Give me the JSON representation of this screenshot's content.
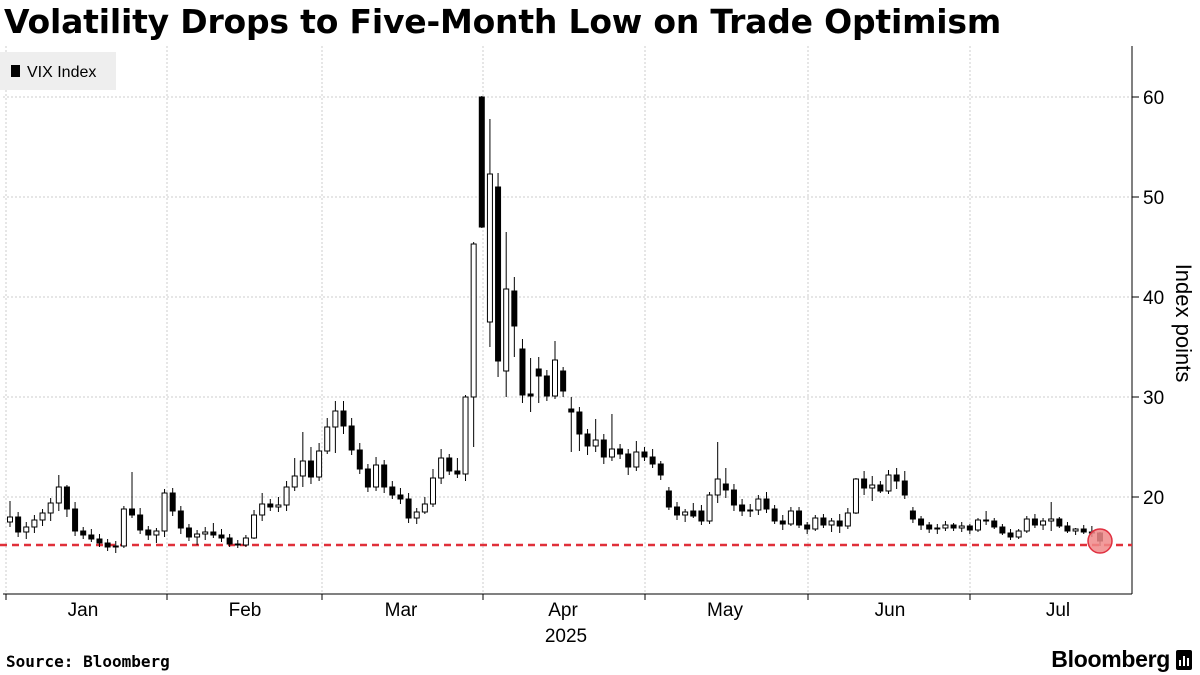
{
  "title": "Volatility Drops to Five-Month Low on Trade Optimism",
  "source": "Source: Bloomberg",
  "brand": "Bloomberg",
  "colors": {
    "candle": "#000000",
    "hollow_fill": "#ffffff",
    "reference_line": "#e0303a",
    "marker_fill": "#f08a8a",
    "marker_stroke": "#e03040",
    "grid": "#cccccc",
    "legend_bg": "#eeeeee"
  },
  "chart_data": {
    "type": "candlestick",
    "series_name": "VIX Index",
    "xlabel": "2025",
    "ylabel": "Index points",
    "y_ticks": [
      20,
      30,
      40,
      50,
      60
    ],
    "ylim": [
      10,
      65
    ],
    "y_axis_side": "right",
    "grid": true,
    "legend_position": "top-left",
    "x_months": [
      "Jan",
      "Feb",
      "Mar",
      "Apr",
      "May",
      "Jun",
      "Jul"
    ],
    "reference_line": {
      "value": 15.2,
      "style": "dashed"
    },
    "highlight": "last point",
    "ohlc": [
      [
        17.5,
        19.6,
        17.0,
        18.0
      ],
      [
        18.0,
        18.5,
        16.0,
        16.5
      ],
      [
        16.5,
        17.5,
        15.8,
        17.0
      ],
      [
        17.0,
        18.2,
        16.4,
        17.7
      ],
      [
        17.7,
        18.8,
        17.1,
        18.4
      ],
      [
        18.4,
        19.9,
        17.6,
        19.4
      ],
      [
        19.4,
        22.2,
        18.6,
        21.0
      ],
      [
        21.0,
        21.2,
        18.0,
        18.8
      ],
      [
        18.8,
        19.5,
        16.1,
        16.6
      ],
      [
        16.6,
        17.0,
        15.8,
        16.2
      ],
      [
        16.2,
        16.8,
        15.5,
        15.8
      ],
      [
        15.8,
        16.3,
        15.0,
        15.4
      ],
      [
        15.4,
        15.8,
        14.6,
        15.0
      ],
      [
        15.0,
        15.6,
        14.4,
        15.1
      ],
      [
        15.1,
        19.1,
        14.9,
        18.8
      ],
      [
        18.8,
        22.5,
        17.9,
        18.2
      ],
      [
        18.2,
        18.9,
        16.3,
        16.7
      ],
      [
        16.7,
        17.1,
        15.7,
        16.2
      ],
      [
        16.2,
        16.9,
        15.4,
        16.6
      ],
      [
        16.6,
        20.8,
        16.0,
        20.4
      ],
      [
        20.4,
        20.9,
        18.1,
        18.6
      ],
      [
        18.6,
        19.1,
        16.3,
        16.9
      ],
      [
        16.9,
        17.3,
        15.6,
        16.0
      ],
      [
        16.0,
        16.7,
        15.2,
        16.3
      ],
      [
        16.3,
        17.0,
        15.7,
        16.5
      ],
      [
        16.5,
        17.4,
        15.9,
        16.2
      ],
      [
        16.2,
        16.8,
        15.5,
        15.9
      ],
      [
        15.9,
        16.3,
        15.0,
        15.3
      ],
      [
        15.3,
        15.7,
        14.9,
        15.2
      ],
      [
        15.2,
        16.2,
        15.0,
        15.9
      ],
      [
        15.9,
        18.7,
        15.8,
        18.2
      ],
      [
        18.2,
        20.4,
        17.6,
        19.3
      ],
      [
        19.3,
        19.8,
        18.6,
        19.0
      ],
      [
        19.0,
        20.0,
        18.5,
        19.2
      ],
      [
        19.2,
        21.6,
        18.6,
        21.0
      ],
      [
        21.0,
        23.9,
        20.6,
        22.1
      ],
      [
        22.1,
        26.5,
        21.0,
        23.6
      ],
      [
        23.6,
        25.0,
        21.3,
        22.0
      ],
      [
        22.0,
        25.4,
        21.6,
        24.6
      ],
      [
        24.6,
        27.9,
        24.3,
        27.0
      ],
      [
        27.0,
        29.6,
        24.4,
        28.6
      ],
      [
        28.6,
        29.6,
        26.3,
        27.1
      ],
      [
        27.1,
        27.9,
        24.2,
        24.7
      ],
      [
        24.7,
        25.4,
        22.3,
        22.8
      ],
      [
        22.8,
        23.3,
        20.5,
        21.0
      ],
      [
        21.0,
        24.0,
        20.6,
        23.2
      ],
      [
        23.2,
        23.7,
        20.4,
        21.0
      ],
      [
        21.0,
        21.6,
        19.8,
        20.2
      ],
      [
        20.2,
        20.9,
        19.3,
        19.8
      ],
      [
        19.8,
        20.4,
        17.4,
        17.9
      ],
      [
        17.9,
        18.9,
        17.3,
        18.5
      ],
      [
        18.5,
        20.0,
        18.3,
        19.3
      ],
      [
        19.3,
        22.8,
        19.0,
        21.9
      ],
      [
        21.9,
        24.8,
        21.3,
        23.9
      ],
      [
        23.9,
        24.3,
        22.2,
        22.6
      ],
      [
        22.6,
        23.9,
        21.9,
        22.3
      ],
      [
        22.3,
        30.2,
        21.6,
        30.0
      ],
      [
        30.0,
        45.5,
        25.0,
        45.3
      ],
      [
        60.0,
        60.1,
        46.9,
        47.0
      ],
      [
        37.5,
        57.8,
        35.0,
        52.3
      ],
      [
        51.0,
        52.4,
        32.0,
        33.6
      ],
      [
        32.6,
        46.5,
        30.0,
        40.8
      ],
      [
        40.6,
        42.0,
        34.0,
        37.1
      ],
      [
        34.8,
        35.8,
        29.4,
        30.2
      ],
      [
        30.3,
        33.9,
        28.5,
        30.1
      ],
      [
        32.8,
        34.0,
        29.4,
        32.1
      ],
      [
        32.1,
        32.7,
        29.6,
        30.1
      ],
      [
        30.1,
        35.6,
        29.8,
        33.7
      ],
      [
        32.6,
        33.0,
        30.0,
        30.6
      ],
      [
        28.8,
        30.0,
        24.5,
        28.5
      ],
      [
        28.5,
        29.0,
        24.6,
        26.3
      ],
      [
        26.3,
        26.8,
        24.2,
        25.1
      ],
      [
        25.1,
        27.8,
        24.5,
        25.7
      ],
      [
        25.7,
        26.3,
        23.3,
        24.0
      ],
      [
        24.0,
        28.3,
        23.6,
        24.8
      ],
      [
        24.8,
        25.3,
        23.8,
        24.3
      ],
      [
        24.3,
        24.8,
        22.2,
        23.0
      ],
      [
        23.0,
        25.6,
        22.6,
        24.5
      ],
      [
        24.5,
        25.0,
        23.6,
        24.0
      ],
      [
        24.0,
        24.8,
        22.9,
        23.3
      ],
      [
        23.3,
        23.6,
        21.7,
        22.2
      ],
      [
        20.6,
        21.0,
        18.7,
        19.0
      ],
      [
        19.0,
        19.5,
        17.7,
        18.2
      ],
      [
        18.2,
        18.8,
        17.5,
        18.5
      ],
      [
        18.6,
        19.4,
        17.9,
        18.1
      ],
      [
        18.6,
        19.2,
        17.2,
        17.6
      ],
      [
        17.6,
        20.5,
        17.3,
        20.2
      ],
      [
        20.2,
        25.5,
        19.4,
        21.8
      ],
      [
        21.3,
        22.9,
        19.9,
        20.7
      ],
      [
        20.7,
        21.3,
        18.6,
        19.2
      ],
      [
        19.2,
        19.8,
        18.1,
        18.6
      ],
      [
        18.6,
        19.3,
        18.0,
        18.7
      ],
      [
        18.7,
        20.2,
        18.2,
        19.8
      ],
      [
        19.8,
        20.5,
        18.4,
        18.8
      ],
      [
        18.8,
        19.2,
        17.3,
        17.6
      ],
      [
        17.6,
        18.2,
        16.7,
        17.3
      ],
      [
        17.3,
        19.0,
        17.1,
        18.6
      ],
      [
        18.6,
        19.0,
        16.9,
        17.2
      ],
      [
        17.2,
        17.5,
        16.3,
        16.8
      ],
      [
        16.8,
        18.2,
        16.6,
        17.9
      ],
      [
        17.9,
        18.3,
        16.9,
        17.2
      ],
      [
        17.2,
        17.9,
        16.5,
        17.6
      ],
      [
        17.6,
        18.3,
        16.4,
        17.1
      ],
      [
        17.1,
        18.9,
        16.8,
        18.4
      ],
      [
        18.4,
        21.9,
        18.3,
        21.8
      ],
      [
        21.8,
        22.6,
        20.2,
        20.9
      ],
      [
        20.9,
        22.1,
        19.6,
        21.2
      ],
      [
        21.2,
        21.6,
        20.4,
        20.6
      ],
      [
        20.6,
        22.7,
        20.3,
        22.2
      ],
      [
        22.2,
        22.9,
        20.8,
        21.6
      ],
      [
        21.6,
        22.6,
        19.8,
        20.2
      ],
      [
        18.6,
        19.0,
        17.4,
        17.8
      ],
      [
        17.8,
        18.1,
        16.7,
        17.2
      ],
      [
        17.2,
        17.5,
        16.4,
        16.8
      ],
      [
        16.8,
        17.3,
        16.3,
        16.9
      ],
      [
        16.9,
        17.6,
        16.6,
        17.2
      ],
      [
        17.2,
        17.4,
        16.6,
        16.9
      ],
      [
        16.9,
        17.5,
        16.5,
        17.1
      ],
      [
        17.1,
        17.3,
        16.3,
        16.7
      ],
      [
        16.7,
        17.9,
        16.5,
        17.7
      ],
      [
        17.7,
        18.6,
        17.2,
        17.6
      ],
      [
        17.6,
        17.9,
        16.8,
        17.0
      ],
      [
        17.0,
        17.3,
        16.2,
        16.4
      ],
      [
        16.4,
        16.8,
        15.7,
        16.0
      ],
      [
        16.0,
        16.8,
        15.8,
        16.6
      ],
      [
        16.6,
        18.1,
        16.4,
        17.8
      ],
      [
        17.8,
        18.3,
        16.9,
        17.2
      ],
      [
        17.2,
        17.9,
        16.7,
        17.6
      ],
      [
        17.6,
        19.5,
        16.6,
        17.8
      ],
      [
        17.8,
        18.0,
        16.9,
        17.1
      ],
      [
        17.1,
        17.5,
        16.4,
        16.6
      ],
      [
        16.6,
        16.9,
        16.2,
        16.8
      ],
      [
        16.8,
        17.2,
        16.3,
        16.5
      ],
      [
        16.5,
        17.1,
        16.0,
        16.4
      ],
      [
        16.4,
        16.5,
        15.1,
        15.6
      ]
    ]
  }
}
